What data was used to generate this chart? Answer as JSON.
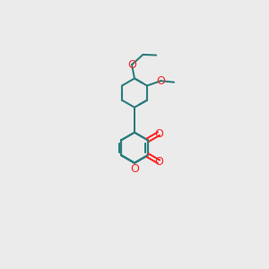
{
  "bg_color": "#ebebeb",
  "bond_color": "#2d7d7d",
  "oxygen_color": "#ff2222",
  "line_width": 1.5,
  "figsize": [
    3.0,
    3.0
  ],
  "dpi": 100,
  "xlim": [
    0,
    10
  ],
  "ylim": [
    0,
    10
  ]
}
